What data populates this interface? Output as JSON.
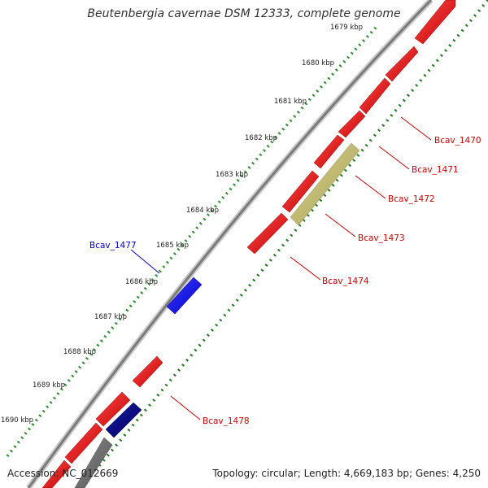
{
  "title": "Beutenbergia cavernae DSM 12333, complete genome",
  "footer": {
    "accession": "Accession: NC_012669",
    "topology": "Topology: circular; Length: 4,669,183 bp; Genes: 4,250"
  },
  "colors": {
    "background": "#ffffff",
    "backbone": "#8c8c8c",
    "tick_outer": "#2e8b2e",
    "tick_inner": "#1f7a1f",
    "gene_forward": "#e00000",
    "gene_pseudo": "#bdb76b",
    "gene_reverse_blue": "#0000ff",
    "gene_reverse_navy": "#000080",
    "gene_reverse_gray": "#6e6e6e",
    "label_red": "#cc0000",
    "label_blue": "#0000cc",
    "kbp_text": "#222222"
  },
  "kbp_labels": [
    "1679 kbp",
    "1680 kbp",
    "1681 kbp",
    "1682 kbp",
    "1683 kbp",
    "1684 kbp",
    "1685 kbp",
    "1686 kbp",
    "1687 kbp",
    "1688 kbp",
    "1689 kbp",
    "1690 kbp"
  ],
  "gene_labels": [
    "Bcav_1470",
    "Bcav_1471",
    "Bcav_1472",
    "Bcav_1473",
    "Bcav_1474",
    "Bcav_1477",
    "Bcav_1478"
  ]
}
